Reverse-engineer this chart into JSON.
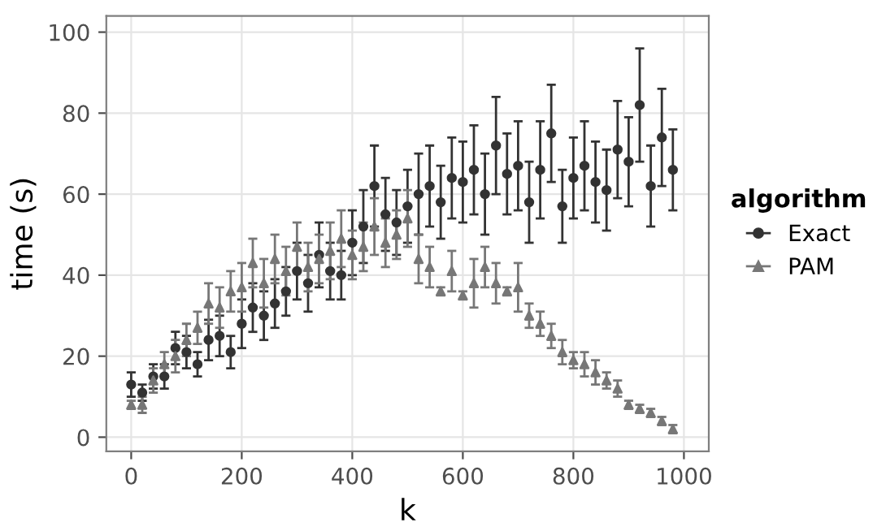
{
  "chart_data": {
    "type": "scatter",
    "xlabel": "k",
    "ylabel": "time (s)",
    "legend_title": "algorithm",
    "legend": "right",
    "grid": true,
    "xlim": [
      -45,
      1045
    ],
    "ylim": [
      -3.5,
      104
    ],
    "xticks": [
      0,
      200,
      400,
      600,
      800,
      1000
    ],
    "yticks": [
      0,
      20,
      40,
      60,
      80,
      100
    ],
    "x": [
      0,
      20,
      40,
      60,
      80,
      100,
      120,
      140,
      160,
      180,
      200,
      220,
      240,
      260,
      280,
      300,
      320,
      340,
      360,
      380,
      400,
      420,
      440,
      460,
      480,
      500,
      520,
      540,
      560,
      580,
      600,
      620,
      640,
      660,
      680,
      700,
      720,
      740,
      760,
      780,
      800,
      820,
      840,
      860,
      880,
      900,
      920,
      940,
      960,
      980
    ],
    "series": [
      {
        "name": "Exact",
        "color": "#333333",
        "marker": "circle",
        "values": [
          13,
          11,
          15,
          15,
          22,
          21,
          18,
          24,
          25,
          21,
          28,
          32,
          30,
          33,
          36,
          41,
          38,
          45,
          41,
          40,
          48,
          52,
          62,
          55,
          53,
          57,
          60,
          62,
          58,
          64,
          63,
          66,
          60,
          72,
          65,
          67,
          58,
          66,
          75,
          57,
          64,
          67,
          63,
          61,
          71,
          68,
          82,
          62,
          74,
          66
        ],
        "errors": [
          3,
          2,
          3,
          3,
          4,
          4,
          3,
          5,
          5,
          4,
          6,
          6,
          6,
          6,
          6,
          7,
          7,
          8,
          7,
          6,
          8,
          9,
          10,
          9,
          8,
          9,
          10,
          10,
          9,
          10,
          10,
          11,
          10,
          12,
          10,
          11,
          10,
          12,
          12,
          9,
          10,
          11,
          10,
          10,
          12,
          11,
          14,
          10,
          12,
          10
        ]
      },
      {
        "name": "PAM",
        "color": "#777777",
        "marker": "triangle",
        "values": [
          8,
          8,
          14,
          18,
          20,
          24,
          27,
          33,
          32,
          36,
          37,
          43,
          38,
          44,
          41,
          47,
          42,
          44,
          46,
          49,
          45,
          47,
          52,
          48,
          50,
          54,
          44,
          42,
          36,
          41,
          35,
          38,
          42,
          38,
          36,
          37,
          30,
          28,
          25,
          21,
          19,
          18,
          16,
          14,
          12,
          8,
          7,
          6,
          4,
          2
        ],
        "errors": [
          1,
          2,
          3,
          3,
          4,
          4,
          4,
          5,
          5,
          5,
          6,
          6,
          6,
          6,
          6,
          6,
          6,
          6,
          7,
          7,
          6,
          6,
          7,
          6,
          6,
          7,
          6,
          5,
          1,
          5,
          1,
          6,
          5,
          5,
          1,
          6,
          3,
          3,
          3,
          3,
          2,
          3,
          3,
          2,
          2,
          1,
          1,
          1,
          1,
          1
        ]
      }
    ]
  }
}
